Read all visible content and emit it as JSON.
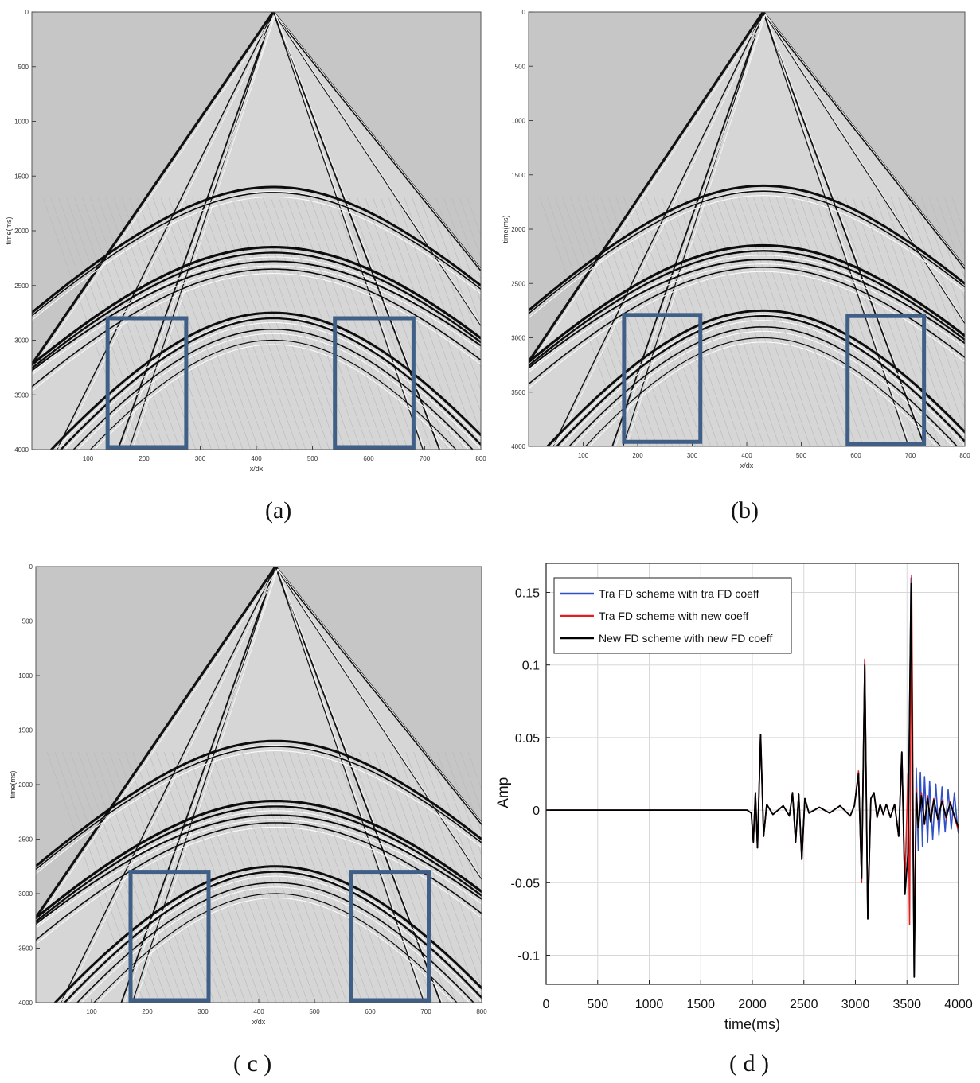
{
  "panels": [
    {
      "caption": "(a)",
      "ylabel": "time(ms)",
      "xlabel": "x/dx",
      "xticks": [
        "100",
        "200",
        "300",
        "400",
        "500",
        "600",
        "700",
        "800"
      ],
      "yticks": [
        "0",
        "500",
        "1000",
        "1500",
        "2000",
        "2500",
        "3000",
        "3500",
        "4000"
      ],
      "highlight_boxes": [
        {
          "x_range": [
            135,
            275
          ],
          "t_range": [
            2800,
            4000
          ]
        },
        {
          "x_range": [
            540,
            680
          ],
          "t_range": [
            2800,
            4000
          ]
        }
      ]
    },
    {
      "caption": "(b)",
      "ylabel": "time(ms)",
      "xlabel": "x/dx",
      "xticks": [
        "100",
        "200",
        "300",
        "400",
        "500",
        "600",
        "700",
        "800"
      ],
      "yticks": [
        "0",
        "500",
        "1000",
        "1500",
        "2000",
        "2500",
        "3000",
        "3500",
        "4000"
      ],
      "highlight_boxes": [
        {
          "x_range": [
            175,
            315
          ],
          "t_range": [
            2790,
            3980
          ]
        },
        {
          "x_range": [
            585,
            725
          ],
          "t_range": [
            2800,
            4000
          ]
        }
      ]
    },
    {
      "caption": "( c )",
      "ylabel": "time(ms)",
      "xlabel": "x/dx",
      "xticks": [
        "100",
        "200",
        "300",
        "400",
        "500",
        "600",
        "700",
        "800"
      ],
      "yticks": [
        "0",
        "500",
        "1000",
        "1500",
        "2000",
        "2500",
        "3000",
        "3500",
        "4000"
      ],
      "highlight_boxes": [
        {
          "x_range": [
            170,
            310
          ],
          "t_range": [
            2800,
            4000
          ]
        },
        {
          "x_range": [
            565,
            705
          ],
          "t_range": [
            2800,
            4000
          ]
        }
      ]
    }
  ],
  "colors": {
    "background": "#c6c6c6",
    "box": "#3f5f86",
    "series": [
      "#3050c8",
      "#e02020",
      "#000000"
    ]
  },
  "chart_data": {
    "type": "line",
    "caption": "( d )",
    "xlabel": "time(ms)",
    "ylabel": "Amp",
    "xlim": [
      0,
      4000
    ],
    "ylim": [
      -0.12,
      0.17
    ],
    "xticks": [
      0,
      500,
      1000,
      1500,
      2000,
      2500,
      3000,
      3500,
      4000
    ],
    "yticks": [
      -0.1,
      -0.05,
      0,
      0.05,
      0.1,
      0.15
    ],
    "xtick_labels": [
      "0",
      "500",
      "1000",
      "1500",
      "2000",
      "2500",
      "3000",
      "3500",
      "4000"
    ],
    "ytick_labels": [
      "-0.1",
      "-0.05",
      "0",
      "0.05",
      "0.1",
      "0.15"
    ],
    "grid": true,
    "legend_position": "top-left",
    "series": [
      {
        "name": "Tra FD scheme with tra FD coeff",
        "color": "#3050c8",
        "points": [
          [
            0,
            0
          ],
          [
            1950,
            0
          ],
          [
            1990,
            -0.002
          ],
          [
            2010,
            -0.022
          ],
          [
            2030,
            0.012
          ],
          [
            2050,
            -0.026
          ],
          [
            2080,
            0.052
          ],
          [
            2110,
            -0.018
          ],
          [
            2140,
            0.004
          ],
          [
            2200,
            -0.003
          ],
          [
            2300,
            0.003
          ],
          [
            2360,
            -0.004
          ],
          [
            2390,
            0.012
          ],
          [
            2420,
            -0.022
          ],
          [
            2450,
            0.011
          ],
          [
            2480,
            -0.034
          ],
          [
            2510,
            0.008
          ],
          [
            2550,
            -0.002
          ],
          [
            2650,
            0.002
          ],
          [
            2750,
            -0.002
          ],
          [
            2850,
            0.003
          ],
          [
            2950,
            -0.004
          ],
          [
            2990,
            0.003
          ],
          [
            3030,
            0.026
          ],
          [
            3060,
            -0.048
          ],
          [
            3090,
            0.103
          ],
          [
            3120,
            -0.075
          ],
          [
            3150,
            0.008
          ],
          [
            3180,
            0.012
          ],
          [
            3210,
            -0.005
          ],
          [
            3240,
            0.004
          ],
          [
            3270,
            -0.003
          ],
          [
            3300,
            0.004
          ],
          [
            3340,
            -0.005
          ],
          [
            3380,
            0.004
          ],
          [
            3420,
            -0.018
          ],
          [
            3450,
            0.04
          ],
          [
            3480,
            -0.058
          ],
          [
            3510,
            -0.03
          ],
          [
            3540,
            0.16
          ],
          [
            3570,
            -0.115
          ],
          [
            3590,
            0.029
          ],
          [
            3610,
            -0.028
          ],
          [
            3630,
            0.026
          ],
          [
            3650,
            -0.025
          ],
          [
            3670,
            0.023
          ],
          [
            3700,
            -0.022
          ],
          [
            3720,
            0.02
          ],
          [
            3750,
            -0.02
          ],
          [
            3780,
            0.018
          ],
          [
            3810,
            -0.017
          ],
          [
            3840,
            0.016
          ],
          [
            3870,
            -0.015
          ],
          [
            3900,
            0.014
          ],
          [
            3930,
            -0.013
          ],
          [
            3960,
            0.012
          ],
          [
            3990,
            -0.012
          ],
          [
            4000,
            -0.016
          ]
        ]
      },
      {
        "name": "Tra FD scheme with new coeff",
        "color": "#e02020",
        "points": [
          [
            0,
            0
          ],
          [
            1950,
            0
          ],
          [
            1990,
            -0.002
          ],
          [
            2010,
            -0.022
          ],
          [
            2030,
            0.012
          ],
          [
            2050,
            -0.026
          ],
          [
            2080,
            0.052
          ],
          [
            2110,
            -0.018
          ],
          [
            2140,
            0.004
          ],
          [
            2200,
            -0.003
          ],
          [
            2300,
            0.003
          ],
          [
            2360,
            -0.004
          ],
          [
            2390,
            0.012
          ],
          [
            2420,
            -0.022
          ],
          [
            2450,
            0.011
          ],
          [
            2480,
            -0.034
          ],
          [
            2510,
            0.008
          ],
          [
            2550,
            -0.002
          ],
          [
            2650,
            0.002
          ],
          [
            2750,
            -0.002
          ],
          [
            2850,
            0.003
          ],
          [
            2950,
            -0.004
          ],
          [
            2990,
            0.003
          ],
          [
            3030,
            0.027
          ],
          [
            3060,
            -0.05
          ],
          [
            3090,
            0.104
          ],
          [
            3120,
            -0.074
          ],
          [
            3150,
            0.008
          ],
          [
            3180,
            0.012
          ],
          [
            3210,
            -0.005
          ],
          [
            3240,
            0.004
          ],
          [
            3270,
            -0.003
          ],
          [
            3300,
            0.004
          ],
          [
            3340,
            -0.005
          ],
          [
            3380,
            0.004
          ],
          [
            3420,
            -0.018
          ],
          [
            3450,
            0.04
          ],
          [
            3480,
            -0.05
          ],
          [
            3510,
            0.025
          ],
          [
            3525,
            -0.079
          ],
          [
            3545,
            0.162
          ],
          [
            3570,
            -0.11
          ],
          [
            3590,
            0.015
          ],
          [
            3610,
            -0.012
          ],
          [
            3640,
            0.012
          ],
          [
            3670,
            -0.01
          ],
          [
            3700,
            0.01
          ],
          [
            3730,
            -0.008
          ],
          [
            3760,
            0.008
          ],
          [
            3800,
            -0.007
          ],
          [
            3840,
            0.007
          ],
          [
            3880,
            -0.006
          ],
          [
            3920,
            0.006
          ],
          [
            3960,
            -0.005
          ],
          [
            4000,
            -0.014
          ]
        ]
      },
      {
        "name": "New FD scheme with new FD coeff",
        "color": "#000000",
        "points": [
          [
            0,
            0
          ],
          [
            1950,
            0
          ],
          [
            1990,
            -0.002
          ],
          [
            2010,
            -0.022
          ],
          [
            2030,
            0.012
          ],
          [
            2050,
            -0.026
          ],
          [
            2080,
            0.052
          ],
          [
            2110,
            -0.018
          ],
          [
            2140,
            0.004
          ],
          [
            2200,
            -0.003
          ],
          [
            2300,
            0.003
          ],
          [
            2360,
            -0.004
          ],
          [
            2390,
            0.012
          ],
          [
            2420,
            -0.022
          ],
          [
            2450,
            0.011
          ],
          [
            2480,
            -0.034
          ],
          [
            2510,
            0.008
          ],
          [
            2550,
            -0.002
          ],
          [
            2650,
            0.002
          ],
          [
            2750,
            -0.002
          ],
          [
            2850,
            0.003
          ],
          [
            2950,
            -0.004
          ],
          [
            2990,
            0.003
          ],
          [
            3030,
            0.025
          ],
          [
            3060,
            -0.047
          ],
          [
            3090,
            0.1
          ],
          [
            3120,
            -0.075
          ],
          [
            3150,
            0.008
          ],
          [
            3180,
            0.012
          ],
          [
            3210,
            -0.005
          ],
          [
            3240,
            0.004
          ],
          [
            3270,
            -0.003
          ],
          [
            3300,
            0.004
          ],
          [
            3340,
            -0.005
          ],
          [
            3380,
            0.004
          ],
          [
            3420,
            -0.018
          ],
          [
            3450,
            0.04
          ],
          [
            3480,
            -0.058
          ],
          [
            3510,
            -0.03
          ],
          [
            3540,
            0.156
          ],
          [
            3570,
            -0.115
          ],
          [
            3590,
            0.012
          ],
          [
            3610,
            -0.012
          ],
          [
            3640,
            0.01
          ],
          [
            3670,
            -0.009
          ],
          [
            3700,
            0.008
          ],
          [
            3730,
            -0.008
          ],
          [
            3760,
            0.007
          ],
          [
            3800,
            -0.006
          ],
          [
            3840,
            0.006
          ],
          [
            3880,
            -0.005
          ],
          [
            3920,
            0.005
          ],
          [
            3960,
            -0.004
          ],
          [
            4000,
            -0.012
          ]
        ]
      }
    ]
  }
}
